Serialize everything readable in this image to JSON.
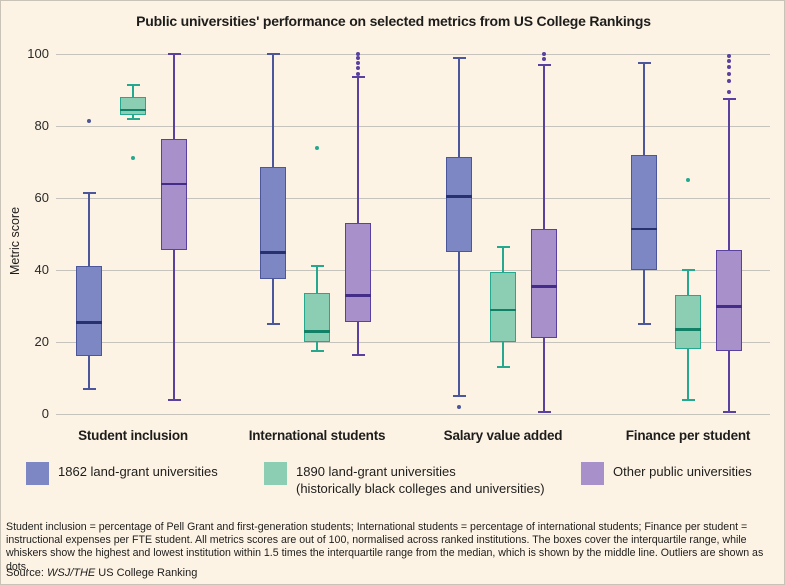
{
  "title": "Public universities' performance on selected metrics from US College Rankings",
  "chart_data": {
    "type": "boxplot",
    "title": "Public universities' performance on selected metrics from US College Rankings",
    "ylabel": "Metric score",
    "ylim": [
      0,
      100
    ],
    "yticks": [
      0,
      20,
      40,
      60,
      80,
      100
    ],
    "grid": "horizontal",
    "legend_position": "bottom",
    "categories": [
      "Student inclusion",
      "International students",
      "Salary value added",
      "Finance per student"
    ],
    "series": [
      {
        "name": "1862 land-grant universities",
        "fill": "#7c87c3",
        "stroke": "#4c569a",
        "median_color": "#28316e",
        "boxes": [
          {
            "category": "Student inclusion",
            "whisker_low": 7,
            "q1": 16,
            "median": 25.5,
            "q3": 41,
            "whisker_high": 61.5,
            "outliers": [
              81.5
            ]
          },
          {
            "category": "International students",
            "whisker_low": 25,
            "q1": 37.5,
            "median": 45,
            "q3": 68.5,
            "whisker_high": 100,
            "outliers": []
          },
          {
            "category": "Salary value added",
            "whisker_low": 5,
            "q1": 45,
            "median": 60.5,
            "q3": 71.5,
            "whisker_high": 99,
            "outliers": [
              2
            ]
          },
          {
            "category": "Finance per student",
            "whisker_low": 25,
            "q1": 40,
            "median": 51.5,
            "q3": 72,
            "whisker_high": 97.5,
            "outliers": []
          }
        ]
      },
      {
        "name": "1890 land-grant universities (historically black colleges and universities)",
        "fill": "#8cceb4",
        "stroke": "#25a98e",
        "median_color": "#128066",
        "boxes": [
          {
            "category": "Student inclusion",
            "whisker_low": 82,
            "q1": 83,
            "median": 84.5,
            "q3": 88,
            "whisker_high": 91.5,
            "outliers": [
              71
            ]
          },
          {
            "category": "International students",
            "whisker_low": 17.5,
            "q1": 20,
            "median": 23,
            "q3": 33.5,
            "whisker_high": 41,
            "outliers": [
              74
            ]
          },
          {
            "category": "Salary value added",
            "whisker_low": 13,
            "q1": 20,
            "median": 29,
            "q3": 39.5,
            "whisker_high": 46.5,
            "outliers": []
          },
          {
            "category": "Finance per student",
            "whisker_low": 4,
            "q1": 18,
            "median": 23.5,
            "q3": 33,
            "whisker_high": 40,
            "outliers": [
              65
            ]
          }
        ]
      },
      {
        "name": "Other public universities",
        "fill": "#a890ca",
        "stroke": "#5a41a0",
        "median_color": "#432d89",
        "boxes": [
          {
            "category": "Student inclusion",
            "whisker_low": 4,
            "q1": 45.5,
            "median": 64,
            "q3": 76.5,
            "whisker_high": 100,
            "outliers": []
          },
          {
            "category": "International students",
            "whisker_low": 16.5,
            "q1": 25.5,
            "median": 33,
            "q3": 53,
            "whisker_high": 93.5,
            "outliers": [
              94.5,
              96,
              97.5,
              99,
              100
            ]
          },
          {
            "category": "Salary value added",
            "whisker_low": 0.5,
            "q1": 21,
            "median": 35.5,
            "q3": 51.5,
            "whisker_high": 97,
            "outliers": [
              98.5,
              100
            ]
          },
          {
            "category": "Finance per student",
            "whisker_low": 0.5,
            "q1": 17.5,
            "median": 30,
            "q3": 45.5,
            "whisker_high": 87.5,
            "outliers": [
              89.5,
              92.5,
              94.5,
              96.5,
              98,
              99.5
            ]
          }
        ]
      }
    ]
  },
  "legend": {
    "items": [
      {
        "color": "#7c87c3",
        "lines": [
          "1862 land-grant universities"
        ]
      },
      {
        "color": "#8cceb4",
        "lines": [
          "1890 land-grant universities",
          "(historically black colleges and universities)"
        ]
      },
      {
        "color": "#a890ca",
        "lines": [
          "Other public universities"
        ]
      }
    ]
  },
  "footnote": "Student inclusion = percentage of Pell Grant and first-generation students; International students = percentage of international students; Finance per student = instructional expenses per FTE student. All metrics scores are out of 100, normalised across ranked institutions. The boxes cover the interquartile range, while whiskers show the highest and lowest institution within 1.5 times the interquartile range from the median, which is shown by the middle line. Outliers are shown as dots.",
  "source": {
    "prefix": "Source: ",
    "publication": "WSJ/THE",
    "suffix": " US College Ranking"
  },
  "colors": {
    "background": "#fdf3e5",
    "gridline": "#c6c3bd",
    "text": "#1d1d1b"
  }
}
